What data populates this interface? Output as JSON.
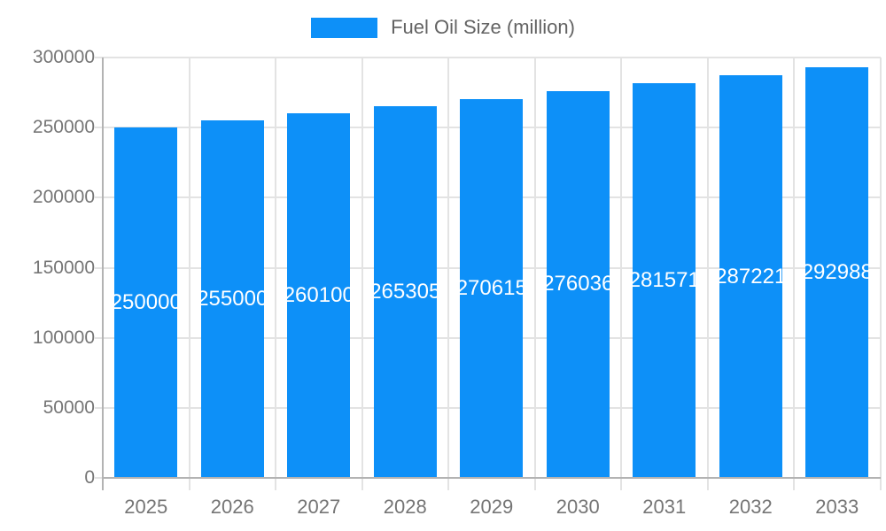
{
  "legend": {
    "label": "Fuel Oil Size (million)"
  },
  "colors": {
    "bar": "#0D90F8",
    "grid": "#e3e3e3",
    "axis": "#b3b3b3",
    "axis_text": "#757575",
    "legend_text": "#636363",
    "annotation_text": "#ffffff",
    "background": "#ffffff"
  },
  "chart_data": {
    "type": "bar",
    "title": "Fuel Oil Size (million)",
    "legend_position": "top-center",
    "categories": [
      "2025",
      "2026",
      "2027",
      "2028",
      "2029",
      "2030",
      "2031",
      "2032",
      "2033"
    ],
    "values": [
      250000,
      255000,
      260100,
      265305,
      270615,
      276036,
      281571,
      287221,
      292988
    ],
    "bar_labels": [
      "250000",
      "255000",
      "260100",
      "265305",
      "270615",
      "276036",
      "281571",
      "287221",
      "292988"
    ],
    "xlabel": "",
    "ylabel": "",
    "ylim": [
      0,
      300000
    ],
    "yticks": [
      0,
      50000,
      100000,
      150000,
      200000,
      250000,
      300000
    ],
    "grid": true
  }
}
